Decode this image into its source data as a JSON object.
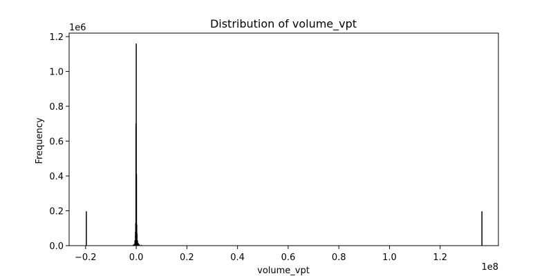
{
  "chart_data": {
    "type": "bar",
    "title": "Distribution of volume_vpt",
    "xlabel": "volume_vpt",
    "ylabel": "Frequency",
    "x_offset_label": "1e8",
    "y_offset_label": "1e6",
    "xlim": [
      -0.265,
      1.43
    ],
    "ylim": [
      0,
      1.22
    ],
    "x_ticks": [
      -0.2,
      0.0,
      0.2,
      0.4,
      0.6,
      0.8,
      1.0,
      1.2
    ],
    "x_tick_labels": [
      "−0.2",
      "0.0",
      "0.2",
      "0.4",
      "0.6",
      "0.8",
      "1.0",
      "1.2"
    ],
    "y_ticks": [
      0.0,
      0.2,
      0.4,
      0.6,
      0.8,
      1.0,
      1.2
    ],
    "y_tick_labels": [
      "0.0",
      "0.2",
      "0.4",
      "0.6",
      "0.8",
      "1.0",
      "1.2"
    ],
    "x_scale_note": "values in units of 1e8",
    "y_scale_note": "values in units of 1e6",
    "bins_x": [
      -0.197,
      -0.012,
      -0.008,
      -0.005,
      -0.003,
      -0.002,
      -0.001,
      0.0,
      0.001,
      0.002,
      0.003,
      0.005,
      0.008,
      0.012,
      0.02,
      0.03,
      1.365
    ],
    "bins_y": [
      0.197,
      0.005,
      0.01,
      0.03,
      0.08,
      0.13,
      0.7,
      1.16,
      0.41,
      0.12,
      0.07,
      0.03,
      0.015,
      0.008,
      0.004,
      0.002,
      0.197
    ],
    "grid": false,
    "legend": "none"
  }
}
